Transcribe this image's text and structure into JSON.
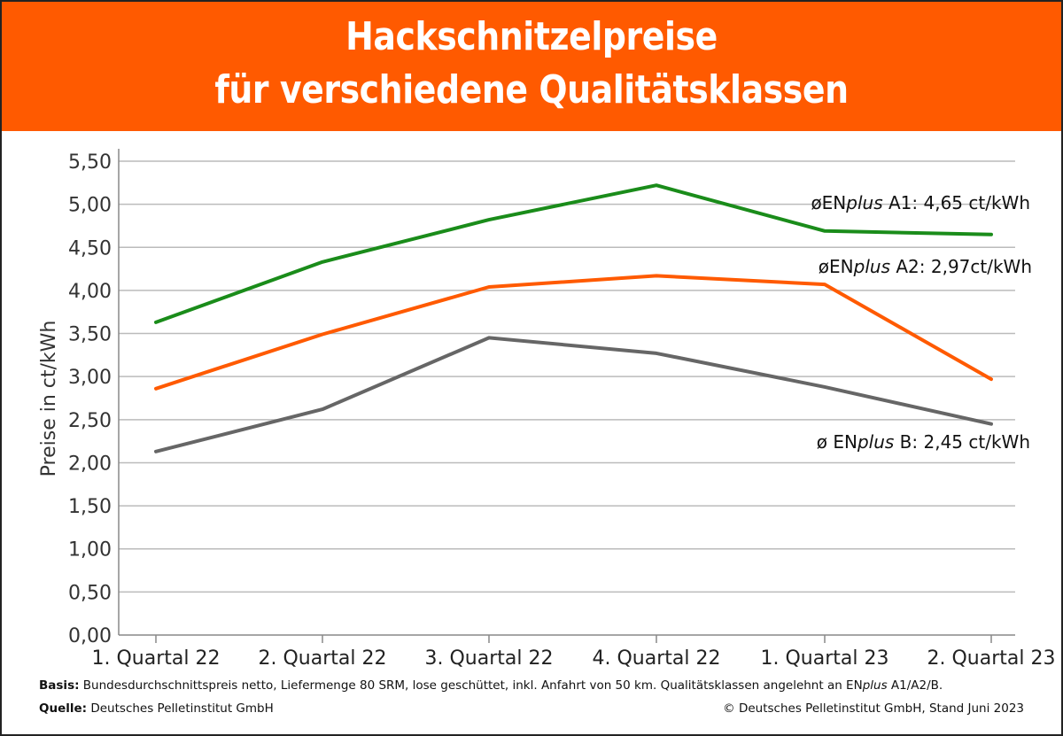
{
  "header": {
    "title_line1": "Hackschnitzelpreise",
    "title_line2": "für verschiedene Qualitätsklassen",
    "background": "#ff5a00"
  },
  "chart_data": {
    "type": "line",
    "title": "Hackschnitzelpreise für verschiedene Qualitätsklassen",
    "xlabel": "",
    "ylabel": "Preise in ct/kWh",
    "ylim": [
      0,
      5.5
    ],
    "yticks": [
      "0,00",
      "0,50",
      "1,00",
      "1,50",
      "2,00",
      "2,50",
      "3,00",
      "3,50",
      "4,00",
      "4,50",
      "5,00",
      "5,50"
    ],
    "grid": true,
    "categories": [
      "1. Quartal 22",
      "2. Quartal 22",
      "3. Quartal 22",
      "4. Quartal 22",
      "1. Quartal 23",
      "2. Quartal 23"
    ],
    "series": [
      {
        "name": "ENplus A1",
        "color": "#1a8c1a",
        "values": [
          3.63,
          4.33,
          4.82,
          5.22,
          4.69,
          4.65
        ]
      },
      {
        "name": "ENplus A2",
        "color": "#ff5a00",
        "values": [
          2.86,
          3.49,
          4.04,
          4.17,
          4.07,
          2.97
        ]
      },
      {
        "name": "ENplus B",
        "color": "#666666",
        "values": [
          2.13,
          2.62,
          3.45,
          3.27,
          2.88,
          2.45
        ]
      }
    ],
    "annotations": [
      {
        "prefix": "øEN",
        "italic": "plus",
        "suffix": " A1: 4,65 ct/kWh"
      },
      {
        "prefix": "øEN",
        "italic": "plus",
        "suffix": " A2: 2,97ct/kWh"
      },
      {
        "prefix": "ø EN",
        "italic": "plus",
        "suffix": " B: 2,45 ct/kWh"
      }
    ]
  },
  "footer": {
    "basis_label": "Basis:",
    "basis_text": " Bundesdurchschnittspreis netto, Liefermenge 80 SRM, lose geschüttet, inkl. Anfahrt von 50 km. Qualitätsklassen angelehnt an EN",
    "basis_italic": "plus",
    "basis_end": " A1/A2/B.",
    "source_label": "Quelle:",
    "source_text": " Deutsches Pelletinstitut GmbH",
    "copyright": "© Deutsches Pelletinstitut GmbH, Stand Juni 2023"
  }
}
